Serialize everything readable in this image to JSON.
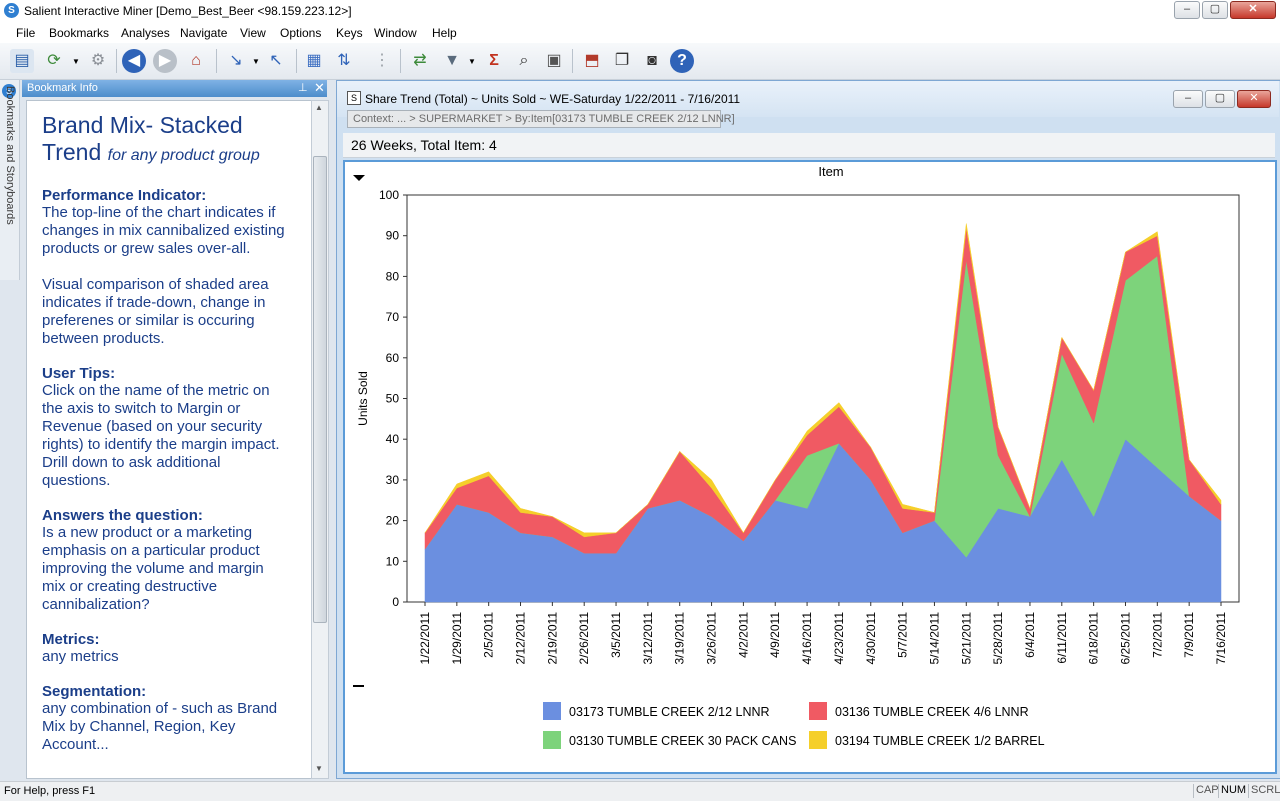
{
  "window": {
    "title": "Salient Interactive Miner  [Demo_Best_Beer <98.159.223.12>]",
    "minimize": "–",
    "restore": "▢",
    "close": "✕"
  },
  "menu": [
    "File",
    "Bookmarks",
    "Analyses",
    "Navigate",
    "View",
    "Options",
    "Keys",
    "Window",
    "Help"
  ],
  "toolbar": {
    "icons": [
      "report-icon",
      "refresh-icon",
      "settings-icon",
      "back-icon",
      "forward-icon",
      "home-icon",
      "drill-down-icon",
      "drill-up-icon",
      "grid-icon",
      "sort-icon",
      "traffic-light-icon",
      "swap-icon",
      "filter-icon",
      "sigma-icon",
      "binoculars-icon",
      "calendar-icon",
      "export-icon",
      "windows-icon",
      "snapshot-icon",
      "help-icon"
    ]
  },
  "sidetab": {
    "label": "Bookmarks and Storyboards"
  },
  "bookmark_panel": {
    "header": "Bookmark Info",
    "pin": "⊥",
    "close": "✕",
    "title_main": "Brand Mix- Stacked",
    "title_line2": "Trend",
    "title_italic": "for any product group",
    "sections": [
      {
        "heading": "Performance Indicator:",
        "paragraphs": [
          [
            "The top-line of the chart indicates if",
            "changes in mix cannibalized existing",
            "products or grew sales over-all."
          ],
          [
            "Visual comparison of shaded area",
            "indicates if trade-down, change in",
            "preferenes or similar is occuring",
            "between products."
          ]
        ]
      },
      {
        "heading": "User Tips:",
        "paragraphs": [
          [
            "Click on the name of the metric on",
            "the axis to switch to Margin or",
            "Revenue (based on your security",
            "rights) to identify the margin impact.",
            "Drill down to ask additional",
            "questions."
          ]
        ]
      },
      {
        "heading": "Answers the question:",
        "paragraphs": [
          [
            "Is a new product or a marketing",
            "emphasis on a particular product",
            "improving the volume and margin",
            "mix or creating destructive",
            "cannibalization?"
          ]
        ]
      },
      {
        "heading": "Metrics:",
        "paragraphs": [
          [
            "any metrics"
          ]
        ]
      },
      {
        "heading": "Segmentation:",
        "paragraphs": [
          [
            "any combination of - such as Brand",
            "Mix by Channel, Region, Key",
            "Account..."
          ]
        ]
      }
    ]
  },
  "child_window": {
    "title": "Share Trend (Total) ~ Units Sold ~ WE-Saturday 1/22/2011 - 7/16/2011",
    "context": "Context: ... > SUPERMARKET > By:Item[03173  TUMBLE CREEK 2/12 LNNR]",
    "summary": "26 Weeks, Total Item: 4"
  },
  "chart_data": {
    "type": "area",
    "stacked": true,
    "title": "Item",
    "ylabel": "Units Sold",
    "xlabel": "",
    "ylim": [
      0,
      100
    ],
    "yticks": [
      0,
      10,
      20,
      30,
      40,
      50,
      60,
      70,
      80,
      90,
      100
    ],
    "grid": false,
    "legend_position": "bottom",
    "x": [
      "1/22/2011",
      "1/29/2011",
      "2/5/2011",
      "2/12/2011",
      "2/19/2011",
      "2/26/2011",
      "3/5/2011",
      "3/12/2011",
      "3/19/2011",
      "3/26/2011",
      "4/2/2011",
      "4/9/2011",
      "4/16/2011",
      "4/23/2011",
      "4/30/2011",
      "5/7/2011",
      "5/14/2011",
      "5/21/2011",
      "5/28/2011",
      "6/4/2011",
      "6/11/2011",
      "6/18/2011",
      "6/25/2011",
      "7/2/2011",
      "7/9/2011",
      "7/16/2011"
    ],
    "series": [
      {
        "name": "03173  TUMBLE CREEK 2/12 LNNR",
        "color": "#6b8fe0",
        "values": [
          13,
          24,
          22,
          17,
          16,
          12,
          12,
          23,
          25,
          21,
          15,
          25,
          23,
          39,
          30,
          17,
          20,
          11,
          23,
          21,
          35,
          21,
          40,
          33,
          26,
          20
        ]
      },
      {
        "name": "03130  TUMBLE CREEK 30 PACK CANS",
        "color": "#7dd37b",
        "values": [
          0,
          0,
          0,
          0,
          0,
          0,
          0,
          0,
          0,
          0,
          0,
          0,
          13,
          0,
          0,
          0,
          0,
          73,
          13,
          0,
          26,
          23,
          39,
          52,
          0,
          0
        ]
      },
      {
        "name": "03136  TUMBLE CREEK 4/6 LNNR",
        "color": "#f05a63",
        "values": [
          4,
          4,
          9,
          5,
          5,
          4,
          5,
          1,
          12,
          7,
          2,
          5,
          5,
          9,
          8,
          6,
          2,
          8,
          7,
          2,
          4,
          8,
          7,
          5,
          9,
          4
        ]
      },
      {
        "name": "03194  TUMBLE CREEK 1/2 BARREL",
        "color": "#f5cf2a",
        "values": [
          0,
          1,
          1,
          1,
          0,
          1,
          0,
          0,
          0,
          2,
          0,
          0,
          1,
          1,
          0,
          1,
          0,
          1,
          0,
          0,
          0,
          0,
          0,
          1,
          0,
          1
        ]
      }
    ]
  },
  "legend_order": [
    0,
    1,
    2,
    3
  ],
  "status": {
    "help": "For Help, press F1",
    "cap": "CAP",
    "num": "NUM",
    "scrl": "SCRL"
  }
}
